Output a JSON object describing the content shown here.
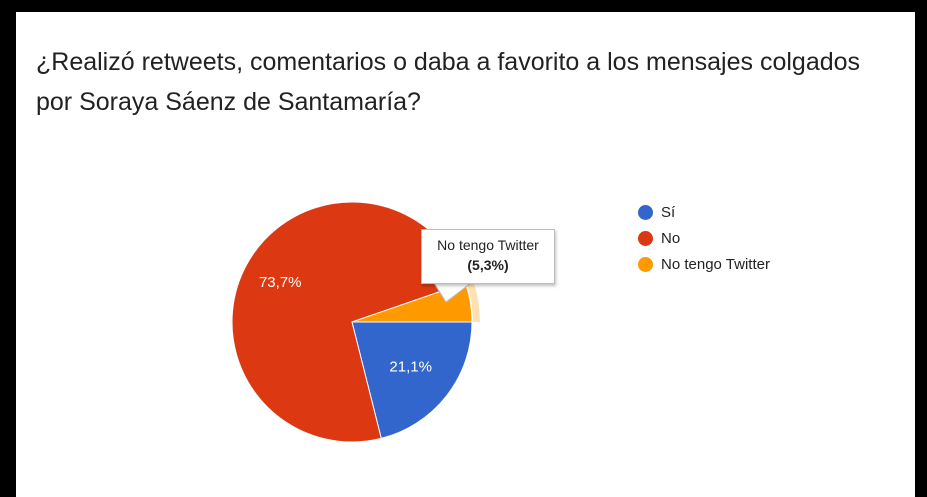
{
  "title": "¿Realizó retweets, comentarios o daba a favorito a los mensajes colgados por Soraya Sáenz de Santamaría?",
  "chart_data": {
    "type": "pie",
    "title": "¿Realizó retweets, comentarios o daba a favorito a los mensajes colgados por Soraya Sáenz de Santamaría?",
    "slices": [
      {
        "label": "Sí",
        "value": 21.1,
        "display": "21,1%",
        "color": "#3366cc"
      },
      {
        "label": "No",
        "value": 73.7,
        "display": "73,7%",
        "color": "#dc3912"
      },
      {
        "label": "No tengo Twitter",
        "value": 5.3,
        "display": "5,3%",
        "color": "#ff9900"
      }
    ],
    "legend_position": "right",
    "highlighted_slice": 2
  },
  "tooltip": {
    "label": "No tengo Twitter",
    "value": "(5,3%)"
  }
}
